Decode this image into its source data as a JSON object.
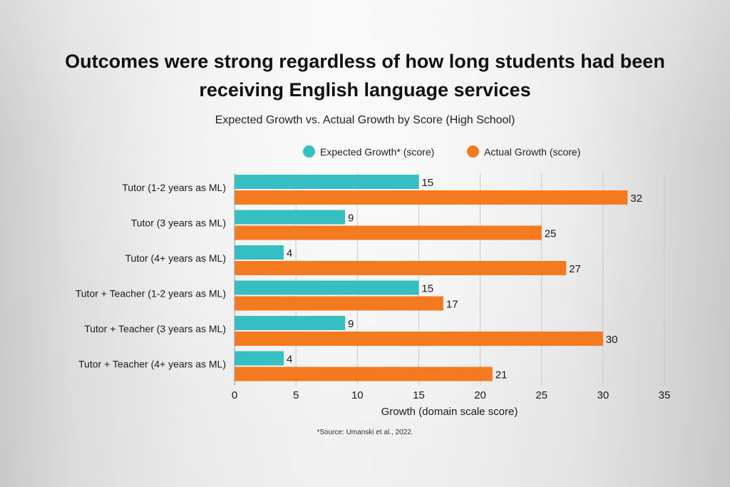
{
  "title_line1": "Outcomes were strong regardless of how long students had been",
  "title_line2": "receiving English language services",
  "subtitle": "Expected Growth vs. Actual Growth by Score (High School)",
  "source": "*Source: Umanski et al., 2022.",
  "colors": {
    "expected": "#36BFC3",
    "actual": "#F47A20",
    "grid": "#c8c8c8"
  },
  "chart_data": {
    "type": "bar",
    "orientation": "horizontal",
    "title": "Outcomes were strong regardless of how long students had been receiving English language services",
    "subtitle": "Expected Growth vs. Actual Growth by Score (High School)",
    "categories": [
      "Tutor (1-2 years as ML)",
      "Tutor (3 years as ML)",
      "Tutor (4+ years as ML)",
      "Tutor + Teacher (1-2 years as ML)",
      "Tutor + Teacher (3 years as ML)",
      "Tutor + Teacher (4+ years as ML)"
    ],
    "series": [
      {
        "name": "Expected Growth* (score)",
        "values": [
          15,
          9,
          4,
          15,
          9,
          4
        ]
      },
      {
        "name": "Actual Growth (score)",
        "values": [
          32,
          25,
          27,
          17,
          30,
          21
        ]
      }
    ],
    "xlabel": "Growth (domain scale score)",
    "ylabel": "",
    "xlim": [
      0,
      35
    ],
    "xticks": [
      0,
      5,
      10,
      15,
      20,
      25,
      30,
      35
    ],
    "grid": true,
    "legend_position": "top"
  }
}
